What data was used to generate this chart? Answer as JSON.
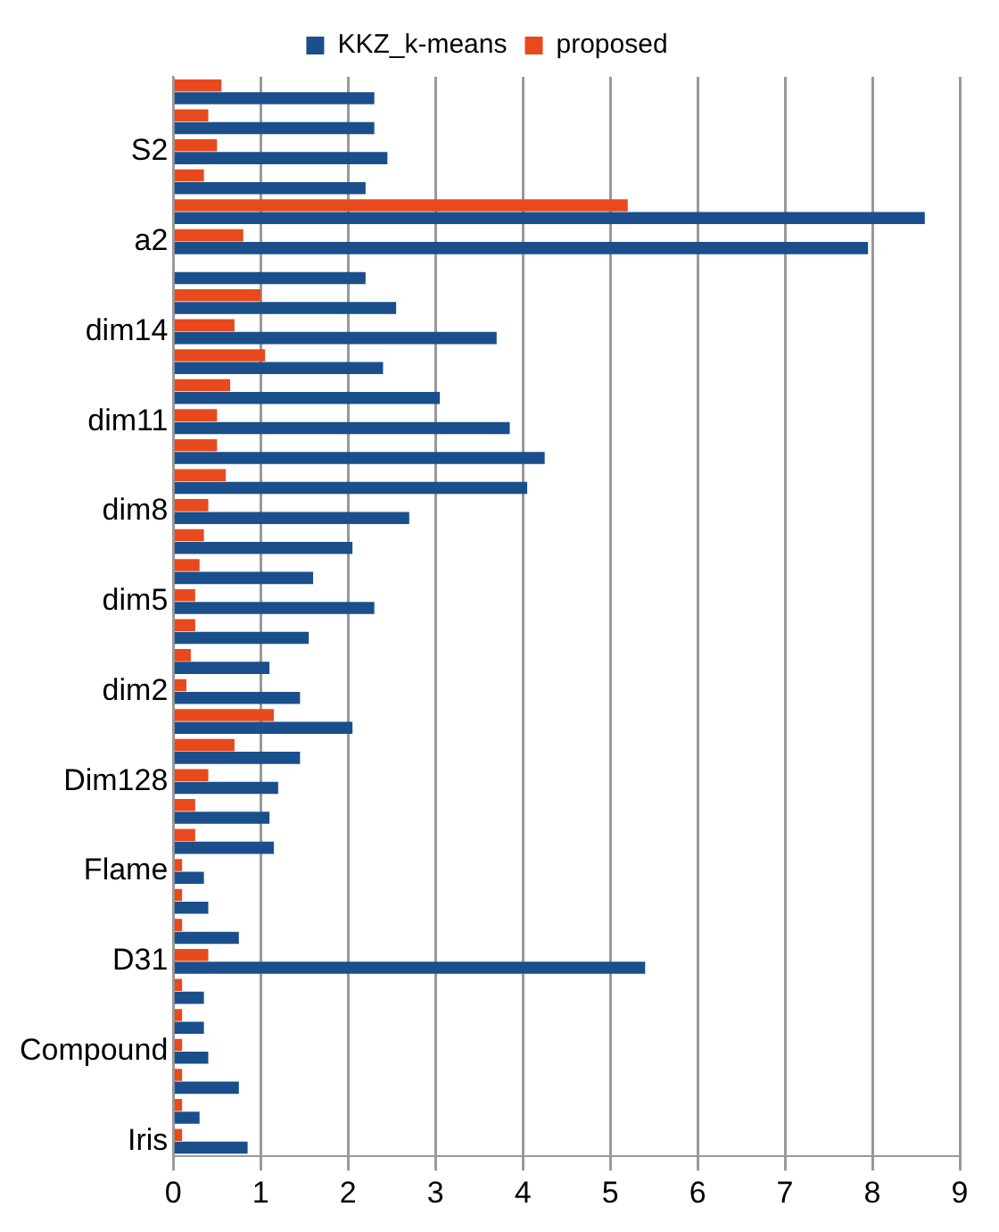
{
  "chart_data": {
    "type": "bar",
    "orientation": "horizontal",
    "categories": [
      null,
      null,
      "S2",
      null,
      null,
      "a2",
      null,
      null,
      "dim14",
      null,
      null,
      "dim11",
      null,
      null,
      "dim8",
      null,
      null,
      "dim5",
      null,
      null,
      "dim2",
      null,
      null,
      "Dim128",
      null,
      null,
      "Flame",
      null,
      null,
      "D31",
      null,
      null,
      "Compound",
      null,
      null,
      "Iris"
    ],
    "series": [
      {
        "name": "KKZ_k-means",
        "color": "#1a4f8b",
        "values": [
          2.3,
          2.3,
          2.45,
          2.2,
          8.6,
          7.95,
          2.2,
          2.55,
          3.7,
          2.4,
          3.05,
          3.85,
          4.25,
          4.05,
          2.7,
          2.05,
          1.6,
          2.3,
          1.55,
          1.1,
          1.45,
          2.05,
          1.45,
          1.2,
          1.1,
          1.15,
          0.35,
          0.4,
          0.75,
          5.4,
          0.35,
          0.35,
          0.4,
          0.75,
          0.3,
          0.85
        ]
      },
      {
        "name": "proposed",
        "color": "#e8491d",
        "values": [
          0.55,
          0.4,
          0.5,
          0.35,
          5.2,
          0.8,
          0,
          1.0,
          0.7,
          1.05,
          0.65,
          0.5,
          0.5,
          0.6,
          0.4,
          0.35,
          0.3,
          0.25,
          0.25,
          0.2,
          0.15,
          1.15,
          0.7,
          0.4,
          0.25,
          0.25,
          0.1,
          0.1,
          0.1,
          0.4,
          0.1,
          0.1,
          0.1,
          0.1,
          0.1,
          0.1
        ]
      }
    ],
    "xlim": [
      0,
      9
    ],
    "xticks": [
      0,
      1,
      2,
      3,
      4,
      5,
      6,
      7,
      8,
      9
    ],
    "grid": "x",
    "legend": "top"
  }
}
